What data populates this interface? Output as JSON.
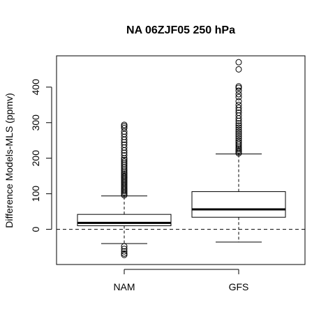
{
  "chart_data": {
    "type": "boxplot",
    "title": "NA 06ZJF05 250 hPa",
    "xlabel": "",
    "ylabel": "Difference Models-MLS (ppmv)",
    "ylim": [
      -99,
      488
    ],
    "y_ticks": [
      0,
      100,
      200,
      300,
      400
    ],
    "y_tick_labels": [
      "0",
      "100",
      "200",
      "300",
      "400"
    ],
    "reference_line": {
      "y": 0,
      "style": "dashed"
    },
    "categories": [
      "NAM",
      "GFS"
    ],
    "boxes": [
      {
        "name": "NAM",
        "whisker_low": -40,
        "q1": 10,
        "median": 18,
        "q3": 42,
        "whisker_high": 94,
        "outliers": [
          -48,
          -55,
          -62,
          -68,
          -72,
          96,
          100,
          104,
          108,
          112,
          116,
          120,
          124,
          128,
          132,
          136,
          140,
          144,
          148,
          152,
          156,
          160,
          165,
          170,
          175,
          180,
          185,
          190,
          195,
          200,
          208,
          215,
          222,
          230,
          238,
          245,
          252,
          260,
          268,
          275,
          285,
          290,
          294
        ]
      },
      {
        "name": "GFS",
        "whisker_low": -36,
        "q1": 34,
        "median": 56,
        "q3": 106,
        "whisker_high": 212,
        "outliers": [
          214,
          218,
          222,
          226,
          230,
          235,
          240,
          245,
          250,
          256,
          262,
          268,
          274,
          280,
          286,
          292,
          298,
          305,
          312,
          320,
          328,
          335,
          342,
          350,
          360,
          372,
          380,
          390,
          398,
          402,
          450,
          470
        ]
      }
    ],
    "grid": false,
    "legend": "none"
  }
}
